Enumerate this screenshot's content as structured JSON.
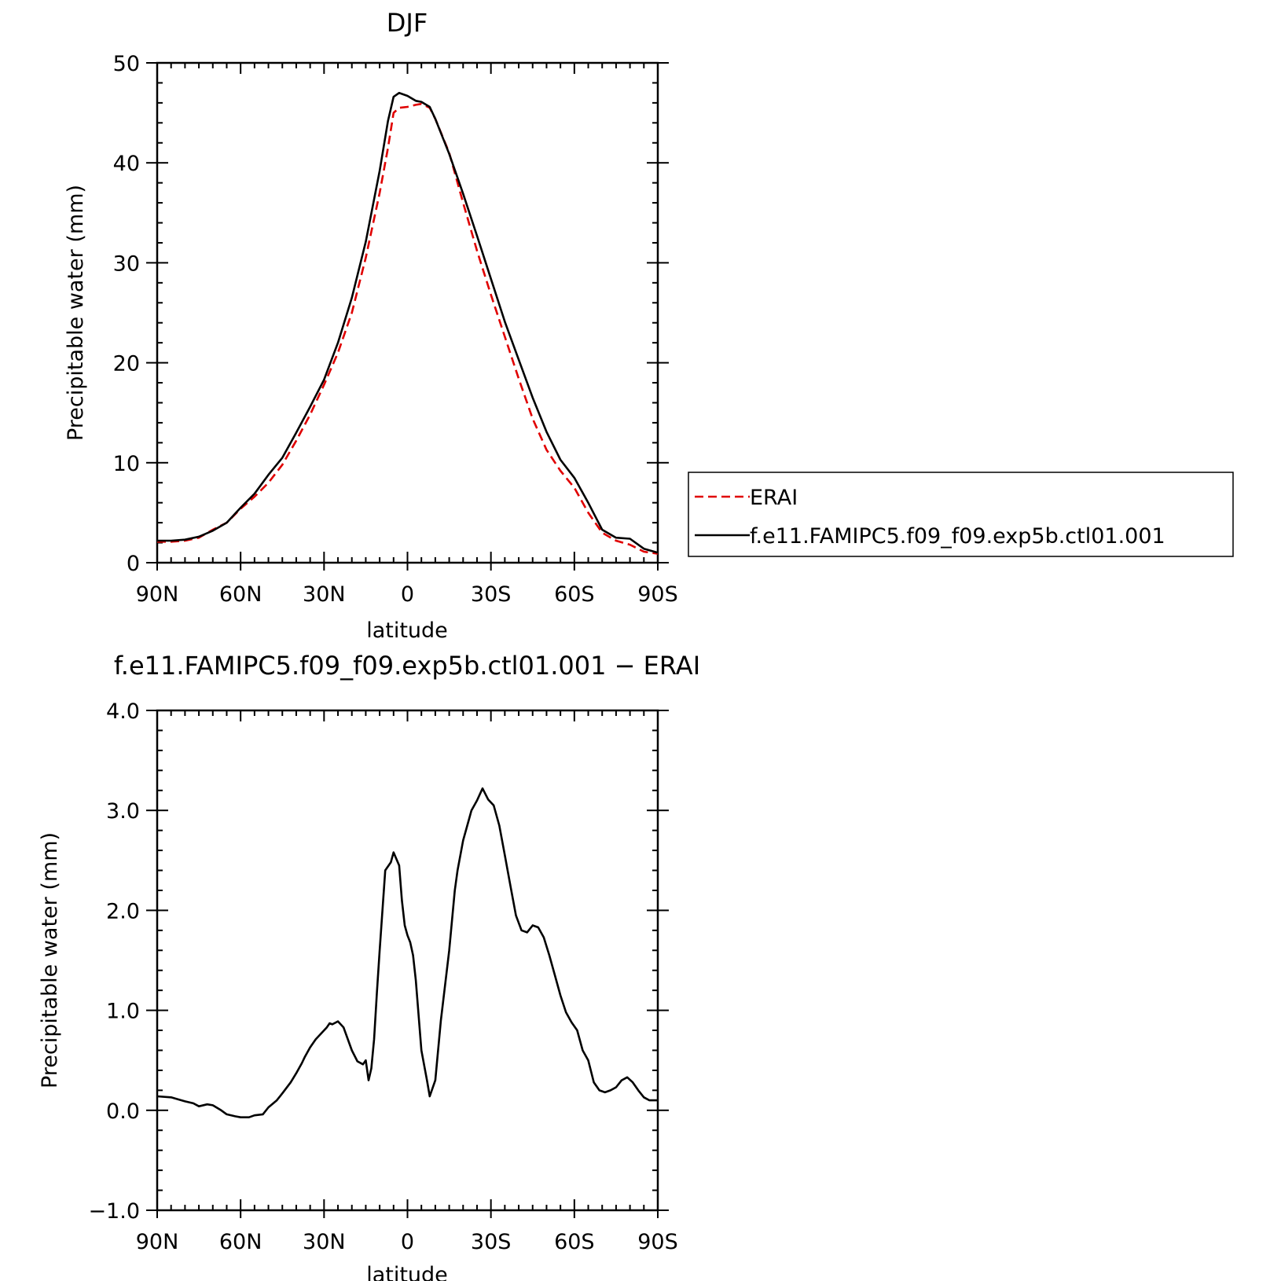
{
  "chart_data": [
    {
      "type": "line",
      "title": "DJF",
      "xlabel": "latitude",
      "ylabel": "Precipitable water (mm)",
      "xlim": [
        90,
        -90
      ],
      "ylim": [
        0,
        50
      ],
      "x_ticks": [
        90,
        60,
        30,
        0,
        -30,
        -60,
        -90
      ],
      "x_tick_labels": [
        "90N",
        "60N",
        "30N",
        "0",
        "30S",
        "60S",
        "90S"
      ],
      "y_ticks": [
        0,
        10,
        20,
        30,
        40,
        50
      ],
      "y_tick_labels": [
        "0",
        "10",
        "20",
        "30",
        "40",
        "50"
      ],
      "legend": {
        "placement": "right"
      },
      "colors": {
        "ERAI": "#e00000",
        "model": "#000000"
      },
      "series": [
        {
          "name": "ERAI",
          "style": "dashed",
          "color": "#e00000",
          "x": [
            90,
            85,
            80,
            75,
            70,
            65,
            60,
            55,
            50,
            45,
            40,
            35,
            30,
            25,
            20,
            15,
            10,
            7,
            5,
            3,
            0,
            -3,
            -5,
            -8,
            -10,
            -15,
            -20,
            -25,
            -30,
            -35,
            -40,
            -45,
            -50,
            -55,
            -60,
            -65,
            -70,
            -75,
            -80,
            -85,
            -90
          ],
          "y": [
            2.1,
            2.1,
            2.2,
            2.5,
            3.3,
            4.0,
            5.4,
            6.6,
            8.0,
            9.8,
            12.2,
            14.8,
            17.8,
            21.0,
            25.0,
            30.5,
            37.0,
            41.5,
            45.0,
            45.5,
            45.6,
            45.8,
            45.9,
            45.5,
            44.4,
            41.0,
            36.0,
            31.2,
            26.8,
            22.6,
            18.4,
            14.4,
            11.3,
            9.2,
            7.5,
            5.0,
            3.0,
            2.2,
            1.8,
            1.1,
            0.9
          ]
        },
        {
          "name": "f.e11.FAMIPC5.f09_f09.exp5b.ctl01.001",
          "style": "solid",
          "color": "#000000",
          "x": [
            90,
            85,
            80,
            75,
            70,
            65,
            60,
            55,
            50,
            45,
            40,
            35,
            30,
            25,
            20,
            15,
            10,
            7,
            5,
            3,
            0,
            -3,
            -5,
            -8,
            -10,
            -15,
            -20,
            -25,
            -30,
            -35,
            -40,
            -45,
            -50,
            -55,
            -60,
            -65,
            -70,
            -75,
            -80,
            -85,
            -90
          ],
          "y": [
            2.2,
            2.2,
            2.3,
            2.6,
            3.2,
            4.0,
            5.5,
            6.9,
            8.8,
            10.5,
            13.0,
            15.6,
            18.3,
            22.0,
            26.5,
            32.1,
            39.2,
            44.2,
            46.6,
            47.0,
            46.7,
            46.2,
            46.1,
            45.6,
            44.4,
            40.9,
            36.9,
            32.7,
            28.4,
            24.1,
            20.3,
            16.5,
            13.1,
            10.3,
            8.5,
            6.0,
            3.3,
            2.5,
            2.4,
            1.4,
            1.0
          ]
        }
      ]
    },
    {
      "type": "line",
      "title": "f.e11.FAMIPC5.f09_f09.exp5b.ctl01.001 − ERAI",
      "xlabel": "latitude",
      "ylabel": "Precipitable water (mm)",
      "xlim": [
        90,
        -90
      ],
      "ylim": [
        -1.0,
        4.0
      ],
      "x_ticks": [
        90,
        60,
        30,
        0,
        -30,
        -60,
        -90
      ],
      "x_tick_labels": [
        "90N",
        "60N",
        "30N",
        "0",
        "30S",
        "60S",
        "90S"
      ],
      "y_ticks": [
        -1.0,
        0.0,
        1.0,
        2.0,
        3.0,
        4.0
      ],
      "y_tick_labels": [
        "−1.0",
        "0.0",
        "1.0",
        "2.0",
        "3.0",
        "4.0"
      ],
      "series": [
        {
          "style": "solid",
          "color": "#000000",
          "x": [
            90,
            85,
            80,
            77,
            75,
            72,
            70,
            67,
            65,
            62,
            60,
            57,
            55,
            52,
            50,
            47,
            45,
            42,
            40,
            38,
            37,
            35,
            33,
            31,
            29,
            28,
            27,
            25,
            23,
            20,
            18,
            16,
            15,
            14,
            13,
            12,
            11,
            10,
            8,
            6,
            5,
            3,
            2,
            1,
            0,
            -1,
            -2,
            -3,
            -5,
            -7,
            -8,
            -10,
            -12,
            -15,
            -17,
            -18,
            -20,
            -22,
            -23,
            -25,
            -27,
            -29,
            -31,
            -33,
            -35,
            -37,
            -39,
            -41,
            -43,
            -45,
            -47,
            -49,
            -51,
            -53,
            -55,
            -57,
            -59,
            -61,
            -63,
            -65,
            -67,
            -69,
            -71,
            -73,
            -75,
            -77,
            -79,
            -81,
            -83,
            -85,
            -87,
            -90
          ],
          "y": [
            0.14,
            0.13,
            0.09,
            0.07,
            0.04,
            0.06,
            0.05,
            0.0,
            -0.04,
            -0.06,
            -0.07,
            -0.07,
            -0.05,
            -0.04,
            0.03,
            0.1,
            0.17,
            0.28,
            0.37,
            0.47,
            0.53,
            0.63,
            0.71,
            0.77,
            0.83,
            0.87,
            0.86,
            0.89,
            0.83,
            0.6,
            0.49,
            0.46,
            0.5,
            0.3,
            0.42,
            0.71,
            1.18,
            1.6,
            2.4,
            2.48,
            2.58,
            2.45,
            2.1,
            1.85,
            1.75,
            1.68,
            1.55,
            1.3,
            0.6,
            0.3,
            0.14,
            0.3,
            0.9,
            1.6,
            2.2,
            2.4,
            2.7,
            2.9,
            3.0,
            3.1,
            3.22,
            3.11,
            3.05,
            2.85,
            2.55,
            2.25,
            1.95,
            1.8,
            1.78,
            1.85,
            1.83,
            1.73,
            1.55,
            1.35,
            1.15,
            0.98,
            0.88,
            0.8,
            0.6,
            0.5,
            0.28,
            0.2,
            0.18,
            0.2,
            0.23,
            0.3,
            0.33,
            0.28,
            0.2,
            0.13,
            0.1,
            0.1
          ]
        }
      ]
    }
  ]
}
